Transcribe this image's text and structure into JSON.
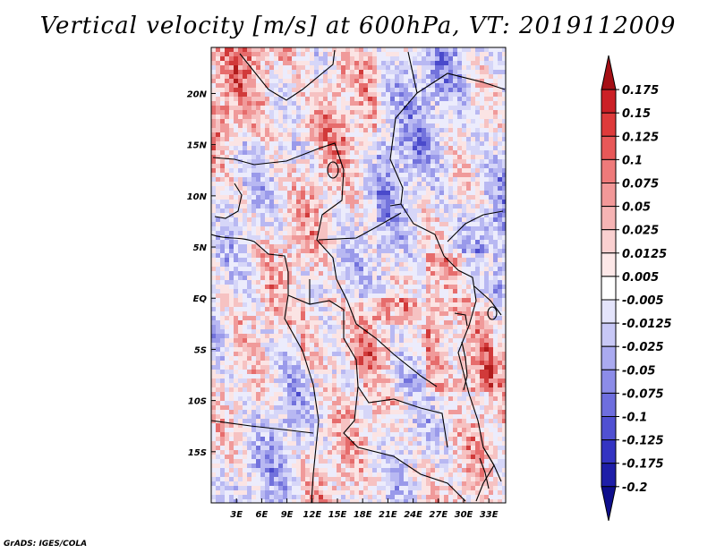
{
  "title": "Vertical velocity [m/s] at 600hPa, VT: 2019112009",
  "credit": "GrADS: IGES/COLA",
  "map": {
    "lat_ticks": [
      "20N",
      "15N",
      "10N",
      "5N",
      "EQ",
      "5S",
      "10S",
      "15S"
    ],
    "lon_ticks": [
      "3E",
      "6E",
      "9E",
      "12E",
      "15E",
      "18E",
      "21E",
      "24E",
      "27E",
      "30E",
      "33E"
    ]
  },
  "colorbar": {
    "levels": [
      "0.175",
      "0.15",
      "0.125",
      "0.1",
      "0.075",
      "0.05",
      "0.025",
      "0.0125",
      "0.005",
      "-0.005",
      "-0.0125",
      "-0.025",
      "-0.05",
      "-0.075",
      "-0.1",
      "-0.125",
      "-0.175",
      "-0.2"
    ],
    "colors": [
      "#a50f15",
      "#cb2026",
      "#de3a3a",
      "#e85858",
      "#ee7a7a",
      "#f29898",
      "#f6b4b4",
      "#fad0d0",
      "#fde8e8",
      "#ffffff",
      "#e4e4fb",
      "#c8c8f6",
      "#aaaaf0",
      "#8c8ce8",
      "#6e6ede",
      "#5050d2",
      "#3434c2",
      "#1e1ea8",
      "#0e0e8c"
    ]
  },
  "chart_data": {
    "type": "heatmap",
    "title": "Vertical velocity [m/s] at 600hPa, VT: 2019112009",
    "variable": "Vertical velocity",
    "units": "m/s",
    "level": "600hPa",
    "valid_time": "2019112009",
    "lon_range": [
      0,
      35
    ],
    "lat_range": [
      -20,
      24.5
    ],
    "x_tick_labels": [
      "3E",
      "6E",
      "9E",
      "12E",
      "15E",
      "18E",
      "21E",
      "24E",
      "27E",
      "30E",
      "33E"
    ],
    "y_tick_labels": [
      "20N",
      "15N",
      "10N",
      "5N",
      "EQ",
      "5S",
      "10S",
      "15S"
    ],
    "contour_levels": [
      -0.2,
      -0.175,
      -0.125,
      -0.1,
      -0.075,
      -0.05,
      -0.025,
      -0.0125,
      -0.005,
      0.005,
      0.0125,
      0.025,
      0.05,
      0.075,
      0.1,
      0.125,
      0.15,
      0.175
    ]
  }
}
